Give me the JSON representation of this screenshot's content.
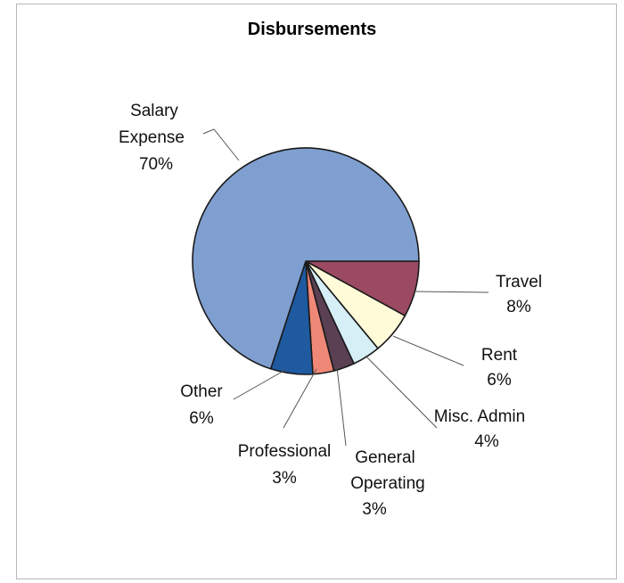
{
  "chart_data": {
    "type": "pie",
    "title": "Disbursements",
    "categories": [
      "Salary Expense",
      "Travel",
      "Rent",
      "Misc. Admin",
      "General Operating",
      "Professional",
      "Other"
    ],
    "values": [
      70,
      8,
      6,
      4,
      3,
      3,
      6
    ],
    "value_labels": [
      "70%",
      "8%",
      "6%",
      "4%",
      "3%",
      "3%",
      "6%"
    ],
    "colors": [
      "#7f9fd0",
      "#9b4a62",
      "#fffbd8",
      "#d6eef5",
      "#5a4052",
      "#f08878",
      "#1f5aa0"
    ],
    "start": "3 o'clock, clockwise (Travel first)",
    "legend": "none",
    "label_placement": "outside-with-leader-lines"
  }
}
